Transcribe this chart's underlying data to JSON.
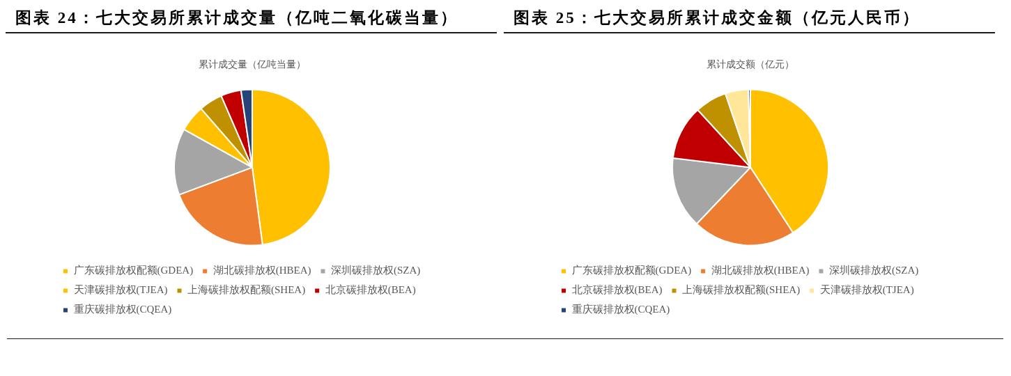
{
  "chart_data": [
    {
      "type": "pie",
      "title": "图表 24：七大交易所累计成交量（亿吨二氧化碳当量）",
      "subtitle": "累计成交量（亿吨当量）",
      "categories": [
        "广东碳排放权配额(GDEA)",
        "湖北碳排放权(HBEA)",
        "深圳碳排放权(SZA)",
        "天津碳排放权(TJEA)",
        "上海碳排放权配额(SHEA)",
        "北京碳排放权(BEA)",
        "重庆碳排放权(CQEA)"
      ],
      "values": [
        47.9,
        21.4,
        13.8,
        5.5,
        4.9,
        4.2,
        2.3
      ],
      "colors": [
        "#ffc000",
        "#ed7d31",
        "#a5a5a5",
        "#ffc000",
        "#bf9000",
        "#c00000",
        "#264478"
      ],
      "legend": "bottom"
    },
    {
      "type": "pie",
      "title": "图表 25：七大交易所累计成交金额（亿元人民币）",
      "subtitle": "累计成交额（亿元）",
      "categories": [
        "广东碳排放权配额(GDEA)",
        "湖北碳排放权(HBEA)",
        "深圳碳排放权(SZA)",
        "北京碳排放权(BEA)",
        "上海碳排放权配额(SHEA)",
        "天津碳排放权(TJEA)",
        "重庆碳排放权(CQEA)"
      ],
      "values": [
        40.8,
        21.3,
        14.8,
        11.3,
        6.6,
        4.8,
        0.4
      ],
      "colors": [
        "#ffc000",
        "#ed7d31",
        "#a5a5a5",
        "#c00000",
        "#bf9000",
        "#ffe699",
        "#264478"
      ],
      "legend": "bottom"
    }
  ]
}
